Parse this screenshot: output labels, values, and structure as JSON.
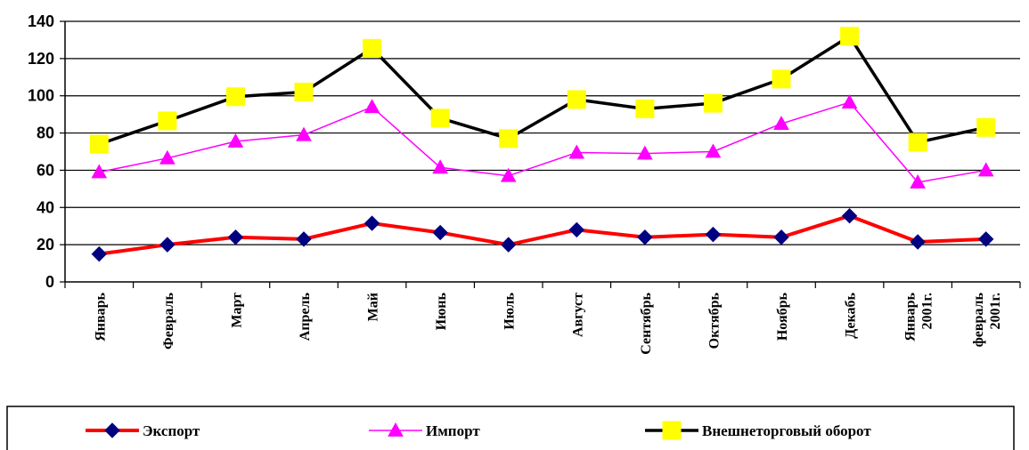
{
  "chart_data": {
    "type": "line",
    "title": "",
    "xlabel": "",
    "ylabel": "",
    "ylim": [
      0,
      140
    ],
    "yticks": [
      0,
      20,
      40,
      60,
      80,
      100,
      120,
      140
    ],
    "grid": "horizontal",
    "legend_position": "bottom",
    "categories": [
      [
        "Январь"
      ],
      [
        "Февраль"
      ],
      [
        "Март"
      ],
      [
        "Апрель"
      ],
      [
        "Май"
      ],
      [
        "Июнь"
      ],
      [
        "Июль"
      ],
      [
        "Август"
      ],
      [
        "Сентябрь"
      ],
      [
        "Октябрь"
      ],
      [
        "Ноябрь"
      ],
      [
        "Декабь"
      ],
      [
        "Январь",
        "2001г."
      ],
      [
        "февраль",
        "2001г."
      ]
    ],
    "series": [
      {
        "name": "Экспорт",
        "color": "#ff0000",
        "marker": "diamond",
        "marker_color": "#000080",
        "values": [
          15,
          20,
          24,
          23,
          31.5,
          26.5,
          20,
          28,
          24,
          25.5,
          24,
          35.5,
          21.5,
          23
        ]
      },
      {
        "name": "Импорт",
        "color": "#ff00ff",
        "marker": "triangle",
        "marker_color": "#ff00ff",
        "values": [
          59,
          66.5,
          75.5,
          79,
          94,
          61.5,
          57,
          69.5,
          69,
          70,
          85,
          96.5,
          53.5,
          60
        ]
      },
      {
        "name": "Внешнеторговый оборот",
        "color": "#000000",
        "marker": "square",
        "marker_color": "#ffff00",
        "values": [
          74,
          86.5,
          99.5,
          102,
          125.5,
          88,
          77,
          98,
          93,
          96,
          109,
          132,
          75,
          83
        ]
      }
    ]
  }
}
